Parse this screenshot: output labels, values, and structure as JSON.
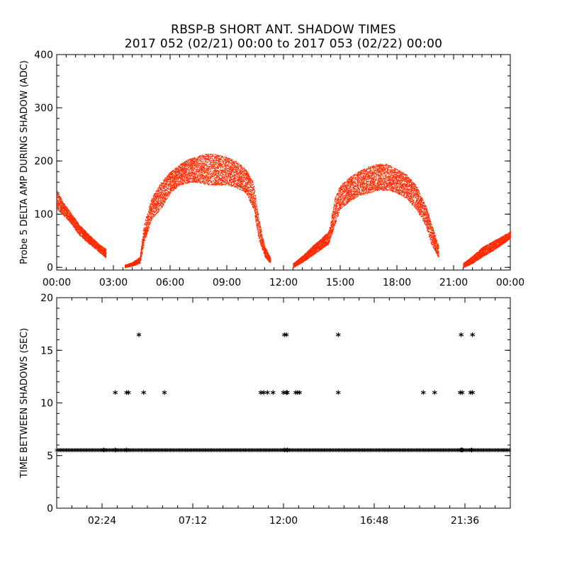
{
  "title": "RBSP-B SHORT ANT. SHADOW TIMES",
  "subtitle": "2017 052 (02/21) 00:00 to 2017 053 (02/22) 00:00",
  "colors": {
    "amp_points": "#ff2a00",
    "shadow_points": "#000000",
    "axes": "#000000"
  },
  "chart_data": [
    {
      "type": "scatter",
      "ylabel": "Probe 5 DELTA AMP DURING SHADOW (ADC)",
      "xlabel": "",
      "xlim": [
        0,
        24
      ],
      "ylim": [
        -5,
        400
      ],
      "x_units": "hours",
      "xticks": [
        0,
        3,
        6,
        9,
        12,
        15,
        18,
        21,
        24
      ],
      "xtick_labels": [
        "00:00",
        "03:00",
        "06:00",
        "09:00",
        "12:00",
        "15:00",
        "18:00",
        "21:00",
        "00:00"
      ],
      "yticks": [
        0,
        100,
        200,
        300,
        400
      ],
      "ytick_labels": [
        "0",
        "100",
        "200",
        "300",
        "400"
      ],
      "color": "#ff2a00",
      "envelope": {
        "x": [
          0,
          0.3,
          0.7,
          1.2,
          1.7,
          2.2,
          2.6,
          2.8,
          3.2,
          3.6,
          4.0,
          4.4,
          4.6,
          5.0,
          5.5,
          6.0,
          6.5,
          7.0,
          7.5,
          8.0,
          8.5,
          9.0,
          9.5,
          10.0,
          10.4,
          10.7,
          11.0,
          11.3,
          11.6,
          12.0,
          12.5,
          13.0,
          13.5,
          14.0,
          14.4,
          14.7,
          15.0,
          15.5,
          16.0,
          16.5,
          17.0,
          17.5,
          18.0,
          18.5,
          19.0,
          19.5,
          19.8,
          20.2,
          20.5,
          21.0,
          21.5,
          22.0,
          22.5,
          23.0,
          23.5,
          24.0
        ],
        "low": [
          110,
          100,
          85,
          60,
          45,
          30,
          18,
          null,
          null,
          0,
          3,
          8,
          45,
          90,
          110,
          140,
          155,
          160,
          160,
          155,
          155,
          155,
          150,
          140,
          110,
          50,
          20,
          8,
          null,
          null,
          0,
          10,
          22,
          35,
          45,
          80,
          110,
          125,
          135,
          140,
          145,
          145,
          140,
          130,
          110,
          80,
          45,
          18,
          null,
          null,
          0,
          8,
          20,
          30,
          42,
          55
        ],
        "high": [
          145,
          125,
          105,
          80,
          62,
          45,
          35,
          null,
          null,
          5,
          10,
          20,
          80,
          130,
          160,
          180,
          195,
          205,
          210,
          215,
          212,
          208,
          200,
          185,
          160,
          90,
          40,
          18,
          null,
          null,
          8,
          22,
          40,
          55,
          70,
          130,
          155,
          170,
          182,
          190,
          195,
          195,
          185,
          175,
          155,
          120,
          85,
          40,
          null,
          null,
          8,
          22,
          38,
          48,
          58,
          68
        ]
      }
    },
    {
      "type": "scatter",
      "ylabel": "TIME BETWEEN SHADOWS (SEC)",
      "xlabel": "",
      "xlim": [
        0,
        24
      ],
      "ylim": [
        0,
        20
      ],
      "x_units": "hours",
      "xticks": [
        2.4,
        7.2,
        12.0,
        16.8,
        21.6
      ],
      "xtick_labels": [
        "02:24",
        "07:12",
        "12:00",
        "16:48",
        "21:36"
      ],
      "yticks": [
        0,
        5,
        10,
        15,
        20
      ],
      "ytick_labels": [
        "0",
        "5",
        "10",
        "15",
        "20"
      ],
      "color": "#000000",
      "baseline": {
        "value": 5.45,
        "from": 0,
        "to": 24
      },
      "points": [
        {
          "x": 3.1,
          "y": 10.9
        },
        {
          "x": 3.7,
          "y": 10.9
        },
        {
          "x": 3.8,
          "y": 10.9
        },
        {
          "x": 4.35,
          "y": 16.4
        },
        {
          "x": 4.6,
          "y": 10.9
        },
        {
          "x": 5.7,
          "y": 10.9
        },
        {
          "x": 10.8,
          "y": 10.9
        },
        {
          "x": 10.95,
          "y": 10.9
        },
        {
          "x": 11.15,
          "y": 10.9
        },
        {
          "x": 11.45,
          "y": 10.9
        },
        {
          "x": 12.05,
          "y": 16.4
        },
        {
          "x": 12.15,
          "y": 16.4
        },
        {
          "x": 12.0,
          "y": 10.9
        },
        {
          "x": 12.15,
          "y": 10.9
        },
        {
          "x": 12.2,
          "y": 10.9
        },
        {
          "x": 12.65,
          "y": 10.9
        },
        {
          "x": 12.75,
          "y": 10.9
        },
        {
          "x": 12.85,
          "y": 10.9
        },
        {
          "x": 14.9,
          "y": 16.4
        },
        {
          "x": 14.9,
          "y": 10.9
        },
        {
          "x": 19.4,
          "y": 10.9
        },
        {
          "x": 20.0,
          "y": 10.9
        },
        {
          "x": 21.4,
          "y": 16.4
        },
        {
          "x": 22.0,
          "y": 16.4
        },
        {
          "x": 21.35,
          "y": 10.9
        },
        {
          "x": 21.45,
          "y": 10.9
        },
        {
          "x": 21.9,
          "y": 10.9
        },
        {
          "x": 22.0,
          "y": 10.9
        },
        {
          "x": 2.5,
          "y": 5.45
        },
        {
          "x": 3.1,
          "y": 5.45
        },
        {
          "x": 3.7,
          "y": 5.45
        },
        {
          "x": 12.05,
          "y": 5.45
        },
        {
          "x": 12.2,
          "y": 5.45
        },
        {
          "x": 21.4,
          "y": 5.45
        },
        {
          "x": 21.45,
          "y": 5.45
        },
        {
          "x": 21.95,
          "y": 5.45
        }
      ]
    }
  ]
}
